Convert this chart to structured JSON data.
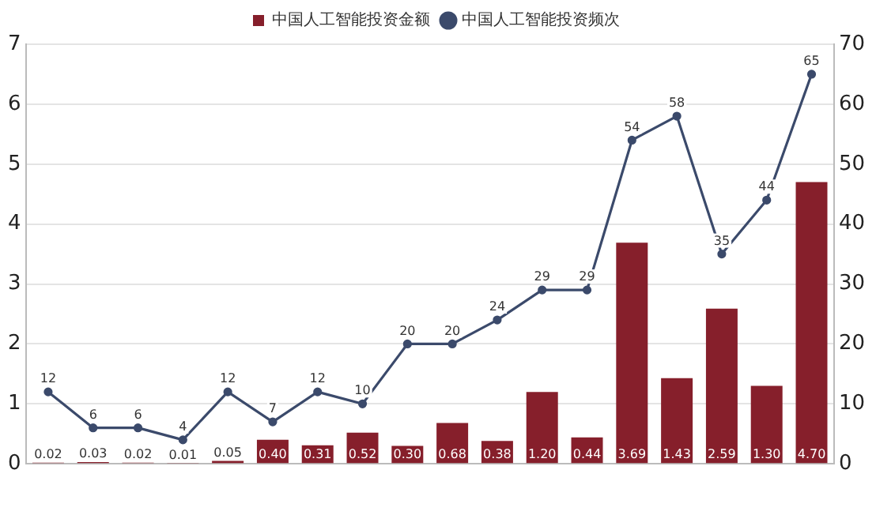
{
  "chart_data": {
    "type": "bar",
    "categories": [
      null,
      null,
      null,
      null,
      null,
      null,
      null,
      null,
      null,
      null,
      null,
      null,
      null,
      null,
      null,
      null,
      null,
      null
    ],
    "series": [
      {
        "name": "中国人工智能投资金额",
        "color": "#861f2b",
        "values": [
          0.02,
          0.03,
          0.02,
          0.01,
          0.05,
          0.4,
          0.31,
          0.52,
          0.3,
          0.68,
          0.38,
          1.2,
          0.44,
          3.69,
          1.43,
          2.59,
          1.3,
          4.7
        ],
        "value_labels": [
          "0.02",
          "0.03",
          "0.02",
          "0.01",
          "0.05",
          "0.40",
          "0.31",
          "0.52",
          "0.30",
          "0.68",
          "0.38",
          "1.20",
          "0.44",
          "3.69",
          "1.43",
          "2.59",
          "1.30",
          "4.70"
        ]
      },
      {
        "name": "中国人工智能投资频次",
        "type": "line",
        "axis": "y2",
        "color": "#3b4a6b",
        "values": [
          12,
          6,
          6,
          4,
          12,
          7,
          12,
          10,
          20,
          20,
          24,
          29,
          29,
          54,
          58,
          35,
          44,
          65
        ]
      }
    ],
    "data_labels": true,
    "ylim": [
      0,
      7
    ],
    "yticks": [
      0,
      1,
      2,
      3,
      4,
      5,
      6,
      7
    ],
    "y2lim": [
      0,
      70
    ],
    "y2ticks": [
      0,
      10,
      20,
      30,
      40,
      50,
      60,
      70
    ],
    "grid": "y",
    "legend": "top",
    "marker": "circle",
    "line_style": "solid"
  }
}
